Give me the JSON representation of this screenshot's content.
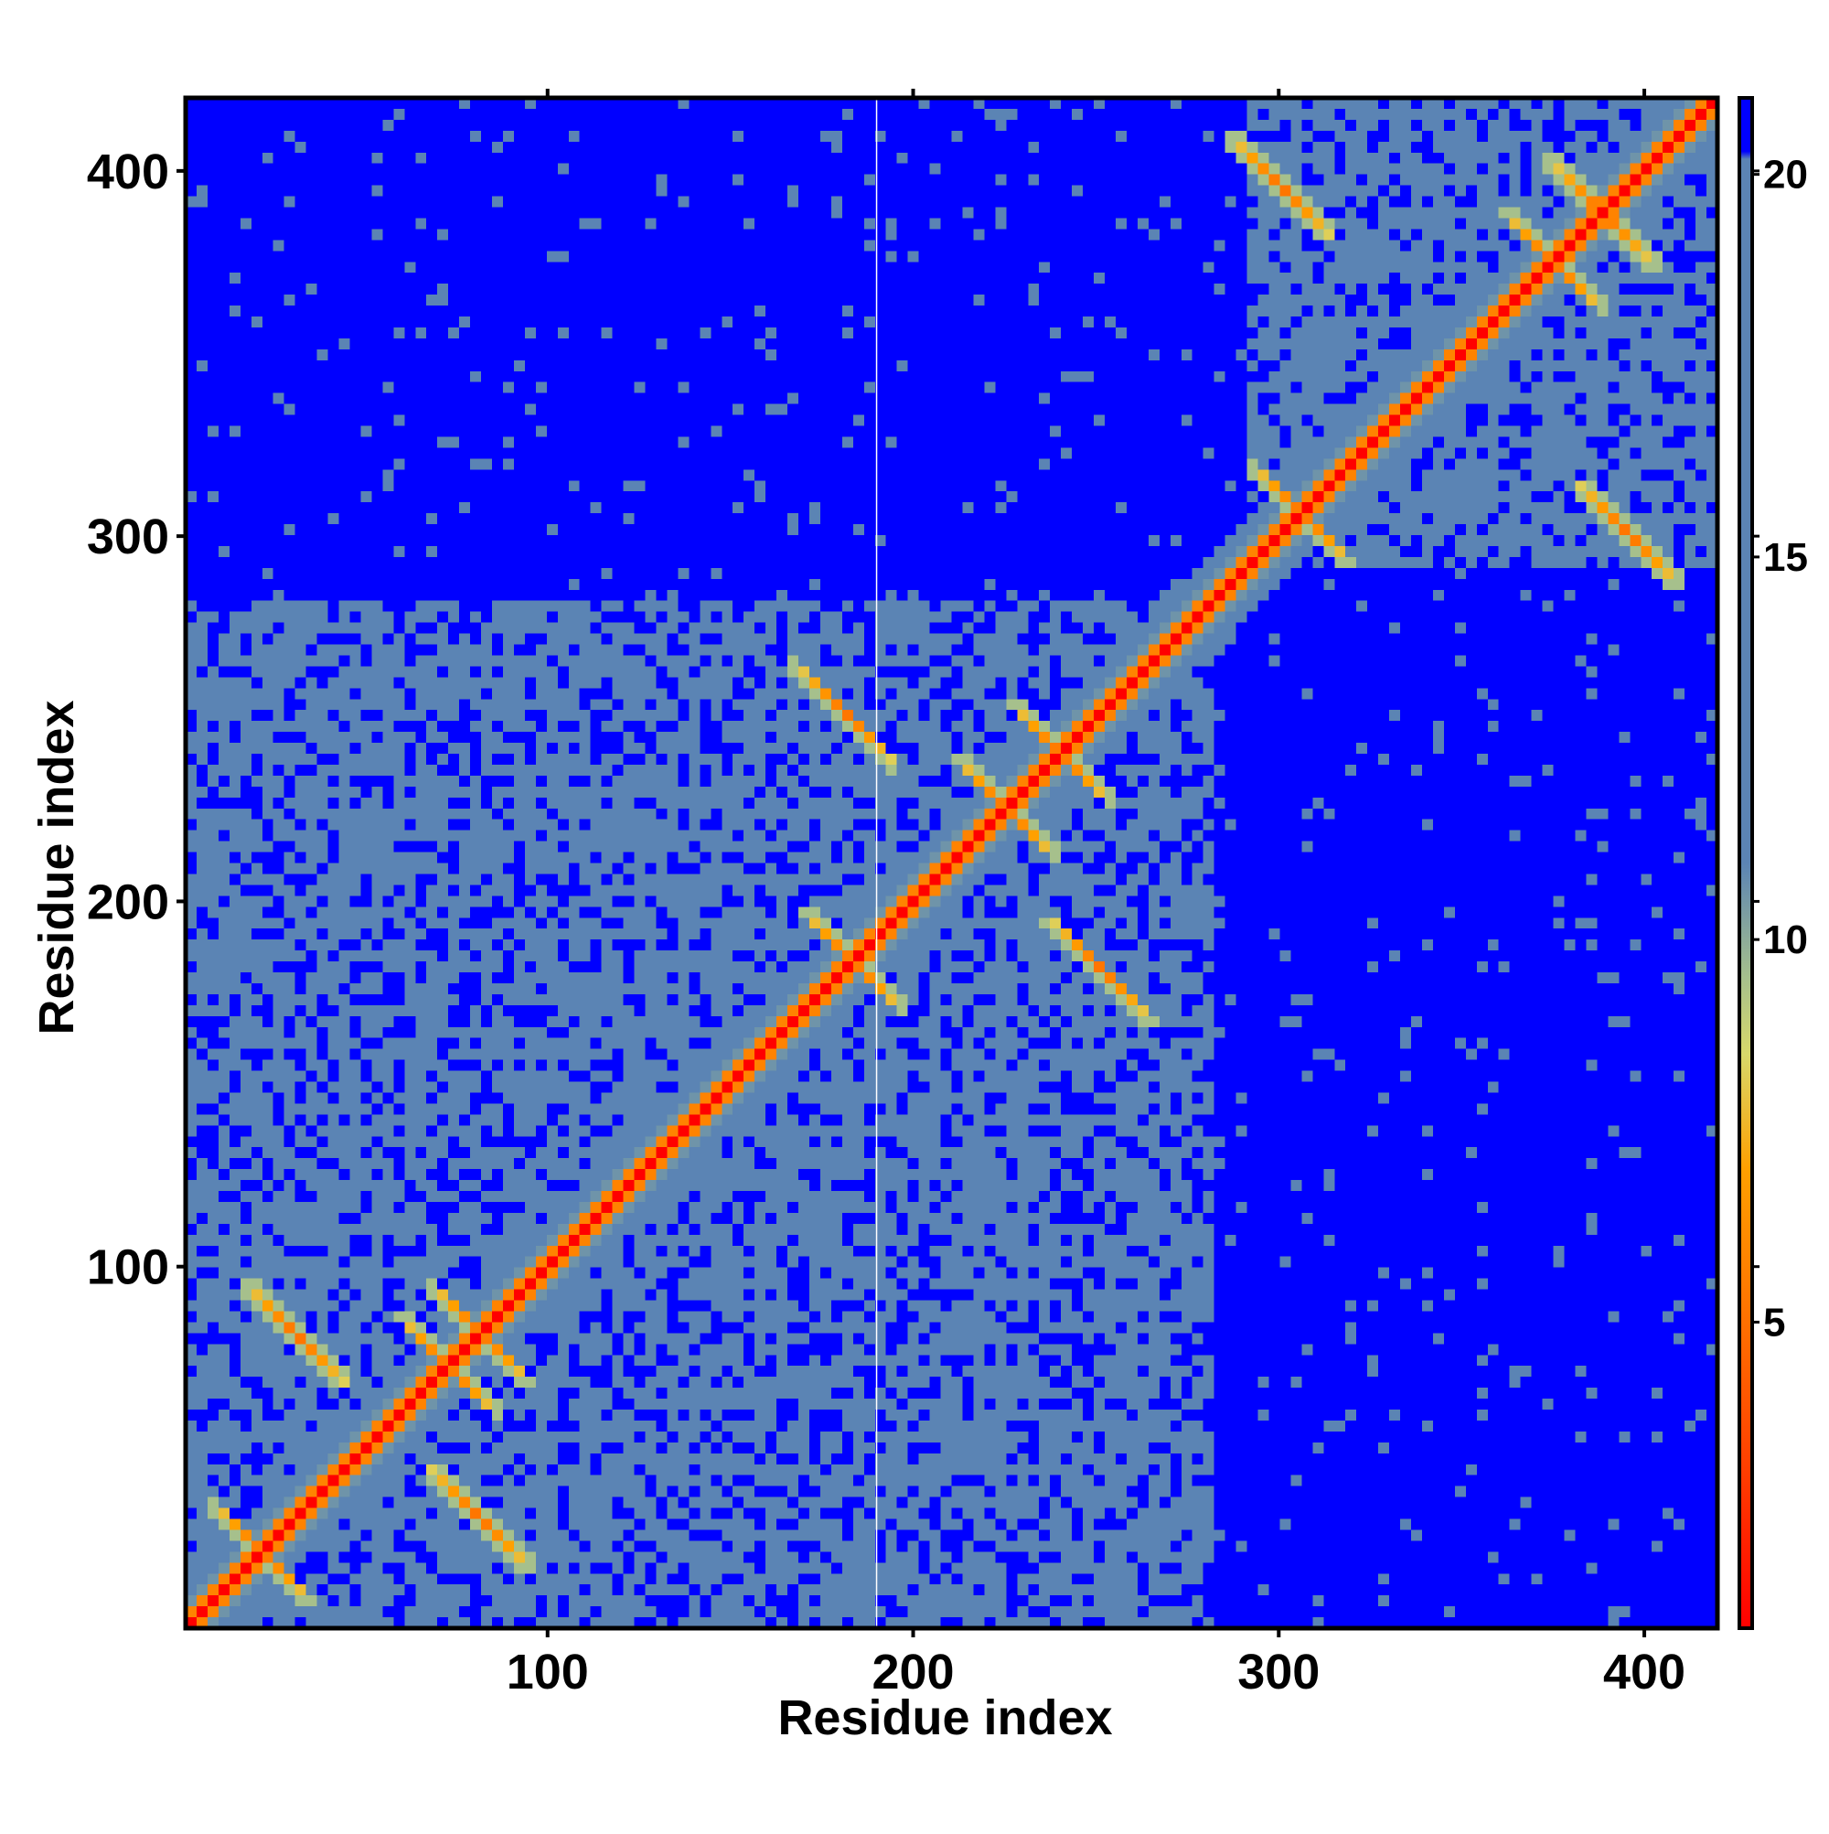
{
  "chart_data": {
    "type": "heatmap",
    "title": "",
    "xlabel": "Residue index",
    "ylabel": "Residue index",
    "xlim": [
      1,
      420
    ],
    "ylim": [
      1,
      420
    ],
    "x_ticks": [
      100,
      200,
      300,
      400
    ],
    "y_ticks": [
      100,
      200,
      300,
      400
    ],
    "x_tick_labels": [
      "100",
      "200",
      "300",
      "400"
    ],
    "y_tick_labels": [
      "100",
      "200",
      "300",
      "400"
    ],
    "colorbar": {
      "range": [
        1,
        21
      ],
      "ticks": [
        5,
        10,
        15,
        20
      ],
      "tick_labels": [
        "5",
        "10",
        "15",
        "20"
      ],
      "stops": [
        {
          "value": 1,
          "color": "#ff0000"
        },
        {
          "value": 3,
          "color": "#ff3c00"
        },
        {
          "value": 5,
          "color": "#ff7000"
        },
        {
          "value": 7,
          "color": "#ffa000"
        },
        {
          "value": 8.5,
          "color": "#d8d86a"
        },
        {
          "value": 9.5,
          "color": "#a6c08c"
        },
        {
          "value": 11,
          "color": "#5b84b4"
        },
        {
          "value": 20.2,
          "color": "#5b84b4"
        },
        {
          "value": 20.3,
          "color": "#0000ff"
        },
        {
          "value": 21,
          "color": "#0000ff"
        }
      ]
    },
    "matrix_description": "Residue-residue distance map; symmetric about the diagonal; distances above ~20 shown in blue.",
    "diagonal_value": 1.5,
    "domains": [
      {
        "start": 1,
        "end": 140
      },
      {
        "start": 75,
        "end": 175
      },
      {
        "start": 150,
        "end": 280
      },
      {
        "start": 290,
        "end": 420
      }
    ],
    "inter_domain_blocks": [
      {
        "x": [
          1,
          150
        ],
        "y": [
          140,
          280
        ],
        "value": 15
      },
      {
        "x": [
          140,
          290
        ],
        "y": [
          1,
          140
        ],
        "value": 15
      },
      {
        "x": [
          290,
          420
        ],
        "y": [
          290,
          420
        ],
        "value": 14
      },
      {
        "x": [
          1,
          140
        ],
        "y": [
          1,
          140
        ],
        "value": 13
      }
    ],
    "crossings": [
      {
        "i": 20,
        "j": 20
      },
      {
        "i": 72,
        "j": 72
      },
      {
        "i": 80,
        "j": 80
      },
      {
        "i": 183,
        "j": 183
      },
      {
        "i": 225,
        "j": 225
      },
      {
        "i": 240,
        "j": 240
      },
      {
        "i": 305,
        "j": 305
      },
      {
        "i": 375,
        "j": 375
      },
      {
        "i": 388,
        "j": 388
      },
      {
        "i": 180,
        "j": 250
      },
      {
        "i": 250,
        "j": 180
      },
      {
        "i": 300,
        "j": 395
      },
      {
        "i": 395,
        "j": 300
      },
      {
        "i": 30,
        "j": 80
      },
      {
        "i": 80,
        "j": 30
      }
    ],
    "missing_residue_column": 190
  }
}
